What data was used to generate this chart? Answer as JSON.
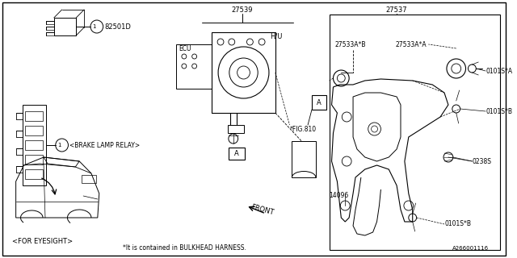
{
  "bg_color": "#ffffff",
  "line_color": "#000000",
  "text_color": "#000000",
  "fig_num": "A266001116",
  "bottom_note": "*It is contained in BULKHEAD HARNESS.",
  "label_27539": "27539",
  "label_27537": "27537",
  "label_27533AB": "27533A*B",
  "label_27533AA": "27533A*A",
  "label_0101SA": "0101S*A",
  "label_0101SB": "0101S*B",
  "label_0238S": "0238S",
  "label_14096": "14096",
  "label_82501D": "82501D",
  "label_HU": "H/U",
  "label_ECU": "ECU",
  "label_brake": "<BRAKE LAMP RELAY>",
  "label_eyesight": "<FOR EYESIGHT>",
  "label_front": "FRONT",
  "label_figref": "*FIG.810",
  "label_A": "A"
}
